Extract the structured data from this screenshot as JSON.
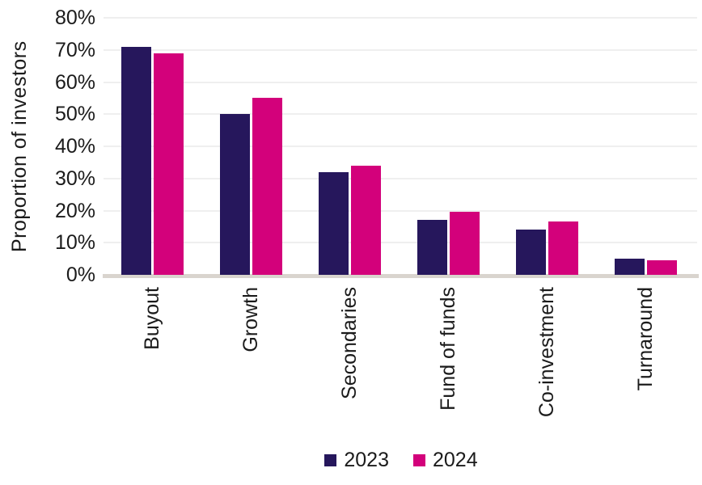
{
  "chart_data": {
    "type": "bar",
    "title": "",
    "xlabel": "",
    "ylabel": "Proportion of investors",
    "categories": [
      "Buyout",
      "Growth",
      "Secondaries",
      "Fund of funds",
      "Co-investment",
      "Turnaround"
    ],
    "series": [
      {
        "name": "2023",
        "color": "#26175c",
        "values": [
          71,
          50,
          32,
          17,
          14,
          5
        ]
      },
      {
        "name": "2024",
        "color": "#d3017b",
        "values": [
          69,
          55,
          34,
          19.5,
          16.5,
          4.5
        ]
      }
    ],
    "ylim": [
      0,
      80
    ],
    "ytick_step": 10,
    "ytick_suffix": "%",
    "grid": "horizontal",
    "legend_position": "bottom",
    "colors": {
      "gridline": "#efefef",
      "axis_line": "#d9d4ce",
      "text": "#1b1b1b"
    }
  }
}
